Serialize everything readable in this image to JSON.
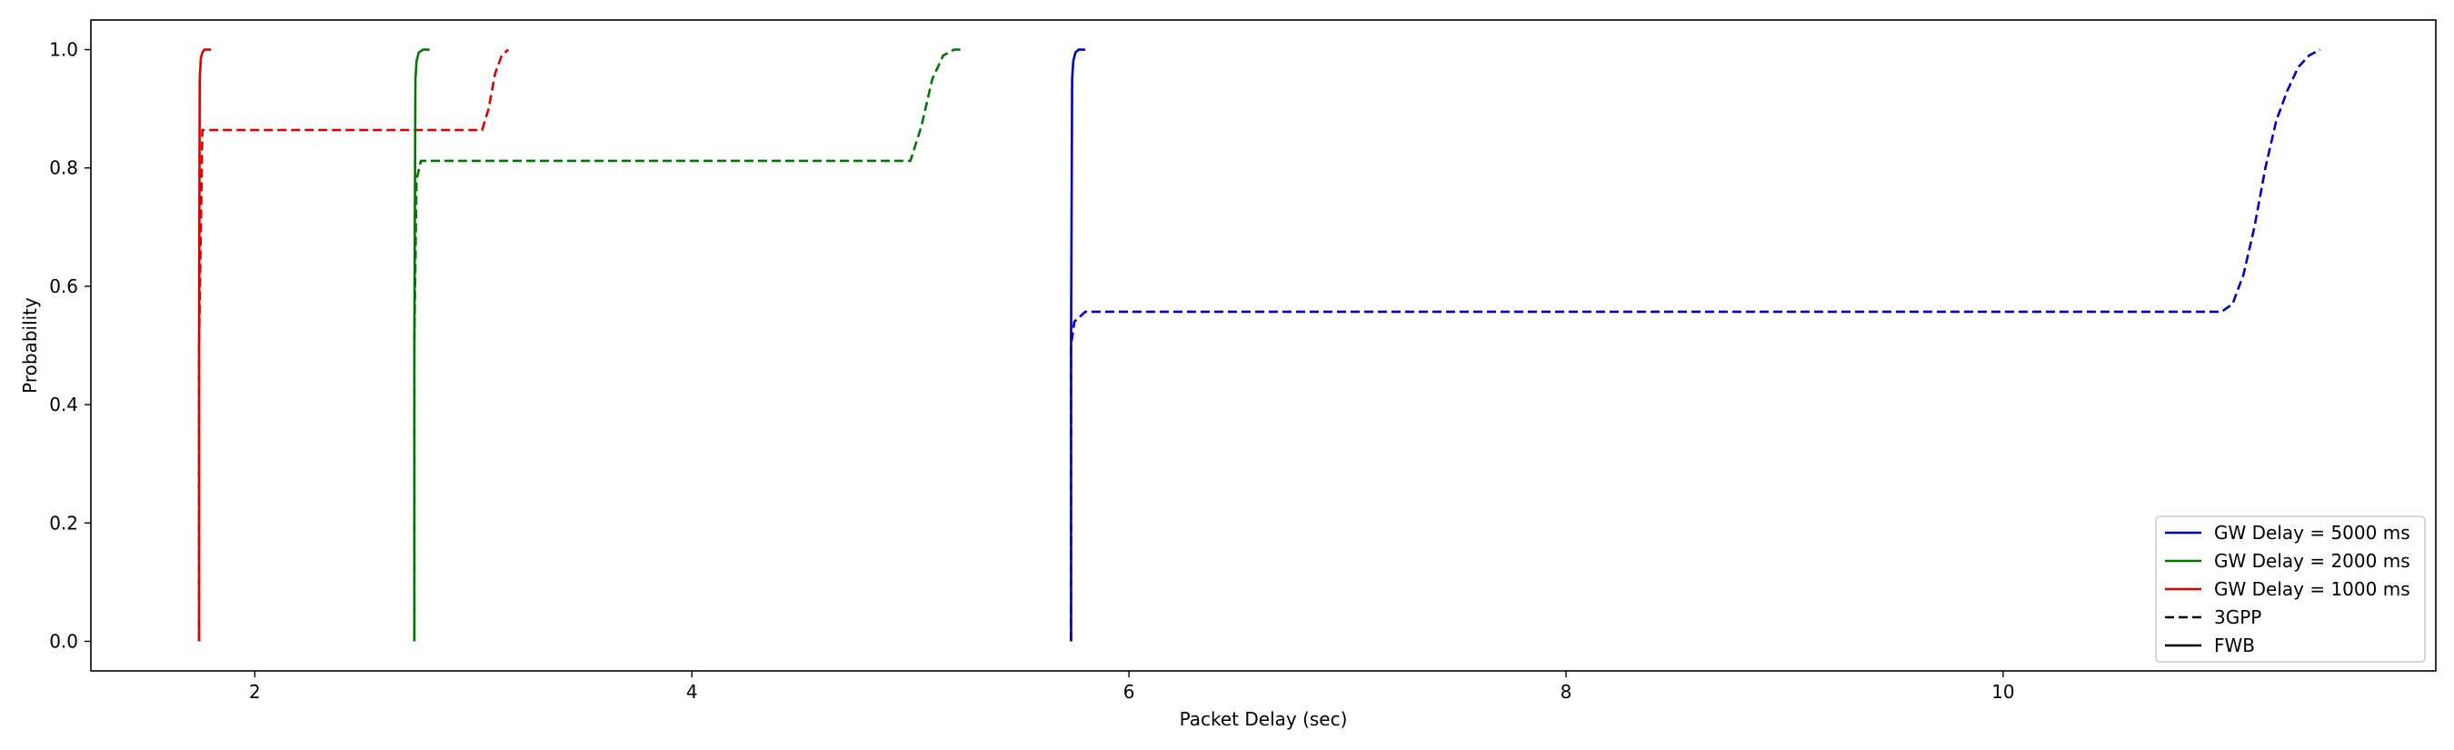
{
  "chart_data": {
    "type": "line",
    "title": "",
    "xlabel": "Packet Delay (sec)",
    "ylabel": "Probability",
    "xlim": [
      1.25,
      11.98
    ],
    "ylim": [
      -0.05,
      1.05
    ],
    "xticks": [
      2,
      4,
      6,
      8,
      10
    ],
    "yticks": [
      0.0,
      0.2,
      0.4,
      0.6,
      0.8,
      1.0
    ],
    "grid": false,
    "legend_position": "bottom-right",
    "legend": [
      {
        "label": "GW Delay = 5000 ms",
        "color": "#0000cc",
        "style": "solid"
      },
      {
        "label": "GW Delay = 2000 ms",
        "color": "#007700",
        "style": "solid"
      },
      {
        "label": "GW Delay = 1000 ms",
        "color": "#dd0000",
        "style": "solid"
      },
      {
        "label": "3GPP",
        "color": "#000000",
        "style": "dashed"
      },
      {
        "label": "FWB",
        "color": "#000000",
        "style": "solid"
      }
    ],
    "series": [
      {
        "group": "GW Delay = 1000 ms",
        "method": "FWB",
        "color": "#dd0000",
        "style": "solid",
        "x": [
          1.745,
          1.745,
          1.748,
          1.753,
          1.76,
          1.77,
          1.8
        ],
        "y": [
          0.0,
          0.5,
          0.95,
          0.985,
          0.995,
          1.0,
          1.0
        ]
      },
      {
        "group": "GW Delay = 1000 ms",
        "method": "3GPP",
        "color": "#dd0000",
        "style": "dashed",
        "x": [
          1.745,
          1.745,
          1.76,
          3.04,
          3.07,
          3.1,
          3.13,
          3.16
        ],
        "y": [
          0.0,
          0.5,
          0.864,
          0.864,
          0.9,
          0.96,
          0.99,
          1.0
        ]
      },
      {
        "group": "GW Delay = 2000 ms",
        "method": "FWB",
        "color": "#007700",
        "style": "solid",
        "x": [
          2.73,
          2.73,
          2.735,
          2.74,
          2.75,
          2.77,
          2.8
        ],
        "y": [
          0.0,
          0.5,
          0.95,
          0.98,
          0.995,
          1.0,
          1.0
        ]
      },
      {
        "group": "GW Delay = 2000 ms",
        "method": "3GPP",
        "color": "#007700",
        "style": "dashed",
        "x": [
          2.73,
          2.73,
          2.74,
          2.76,
          5.0,
          5.05,
          5.1,
          5.15,
          5.2,
          5.25
        ],
        "y": [
          0.0,
          0.5,
          0.78,
          0.812,
          0.812,
          0.87,
          0.95,
          0.99,
          1.0,
          1.0
        ]
      },
      {
        "group": "GW Delay = 5000 ms",
        "method": "FWB",
        "color": "#0000cc",
        "style": "solid",
        "x": [
          5.735,
          5.735,
          5.74,
          5.745,
          5.755,
          5.77,
          5.8
        ],
        "y": [
          0.0,
          0.5,
          0.95,
          0.98,
          0.995,
          1.0,
          1.0
        ]
      },
      {
        "group": "GW Delay = 5000 ms",
        "method": "3GPP",
        "color": "#0000cc",
        "style": "dashed",
        "x": [
          5.735,
          5.735,
          5.75,
          5.8,
          11.0,
          11.05,
          11.1,
          11.15,
          11.2,
          11.25,
          11.3,
          11.35,
          11.4,
          11.45
        ],
        "y": [
          0.0,
          0.5,
          0.54,
          0.557,
          0.557,
          0.57,
          0.62,
          0.7,
          0.8,
          0.88,
          0.93,
          0.97,
          0.99,
          1.0
        ]
      }
    ]
  }
}
